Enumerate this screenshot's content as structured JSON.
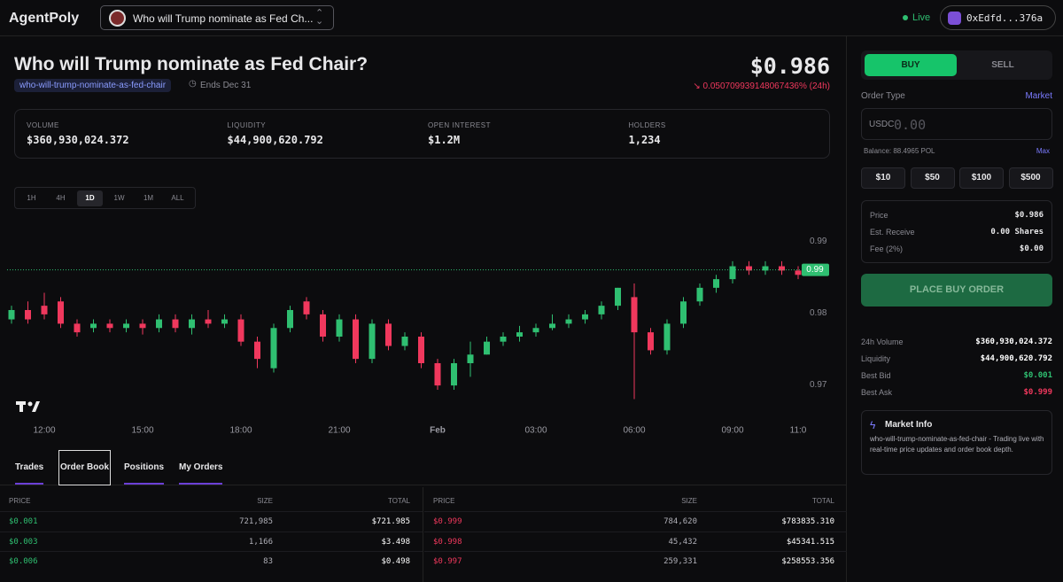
{
  "header": {
    "brand": "AgentPoly",
    "market_select": "Who will Trump nominate as Fed Ch...",
    "status": "Live",
    "wallet": "0xEdfd...376a"
  },
  "market": {
    "title": "Who will Trump nominate as Fed Chair?",
    "slug": "who-will-trump-nominate-as-fed-chair",
    "ends": "Ends Dec 31",
    "price": "$0.986",
    "change": "0.050709939148067436% (24h)"
  },
  "stats": [
    {
      "label": "VOLUME",
      "value": "$360,930,024.372"
    },
    {
      "label": "LIQUIDITY",
      "value": "$44,900,620.792"
    },
    {
      "label": "OPEN INTEREST",
      "value": "$1.2M"
    },
    {
      "label": "HOLDERS",
      "value": "1,234"
    }
  ],
  "timeframes": [
    "1H",
    "4H",
    "1D",
    "1W",
    "1M",
    "ALL"
  ],
  "active_timeframe": 2,
  "price_chart": {
    "type": "candlestick",
    "categories": [
      null,
      null,
      "12:00",
      null,
      null,
      null,
      null,
      null,
      "15:00",
      null,
      null,
      null,
      null,
      null,
      "18:00",
      null,
      null,
      null,
      null,
      null,
      "21:00",
      null,
      null,
      null,
      null,
      null,
      "Feb",
      null,
      null,
      null,
      null,
      null,
      "03:00",
      null,
      null,
      null,
      null,
      null,
      "06:00",
      null,
      null,
      null,
      null,
      null,
      "09:00",
      null,
      null,
      null,
      "11:0"
    ],
    "open": [
      0.9791,
      0.9804,
      0.981,
      0.9816,
      0.9785,
      0.9779,
      0.9785,
      0.9779,
      0.9785,
      0.9779,
      0.9791,
      0.9779,
      0.9791,
      0.9785,
      0.9791,
      0.976,
      0.9723,
      0.9779,
      0.9816,
      0.9798,
      0.9767,
      0.9791,
      0.9736,
      0.9785,
      0.9754,
      0.9767,
      0.973,
      0.9699,
      0.973,
      0.9742,
      0.976,
      0.9767,
      0.9773,
      0.9779,
      0.9785,
      0.9791,
      0.9798,
      0.981,
      0.9822,
      0.9773,
      0.9748,
      0.9785,
      0.9816,
      0.9835,
      0.9847,
      0.9865,
      0.9859,
      0.9865,
      0.9859
    ],
    "high": [
      0.981,
      0.9816,
      0.9828,
      0.9822,
      0.9791,
      0.9791,
      0.9791,
      0.9791,
      0.9791,
      0.9798,
      0.9798,
      0.9798,
      0.9804,
      0.9798,
      0.9798,
      0.9767,
      0.9785,
      0.981,
      0.9822,
      0.9804,
      0.9798,
      0.9798,
      0.9791,
      0.9791,
      0.9773,
      0.9773,
      0.9736,
      0.9736,
      0.976,
      0.9767,
      0.9773,
      0.9782,
      0.9785,
      0.9798,
      0.9798,
      0.9804,
      0.9816,
      0.9835,
      0.9841,
      0.9779,
      0.9791,
      0.9822,
      0.9841,
      0.9853,
      0.9872,
      0.9872,
      0.9872,
      0.9872,
      0.9865
    ],
    "low": [
      0.9785,
      0.9785,
      0.9791,
      0.9779,
      0.9767,
      0.9773,
      0.9773,
      0.9773,
      0.977,
      0.9773,
      0.9773,
      0.977,
      0.9779,
      0.9779,
      0.9754,
      0.9723,
      0.9717,
      0.9773,
      0.9791,
      0.976,
      0.976,
      0.973,
      0.973,
      0.9748,
      0.9748,
      0.9723,
      0.9693,
      0.9693,
      0.9711,
      0.9742,
      0.9754,
      0.976,
      0.9767,
      0.9776,
      0.9779,
      0.9785,
      0.9791,
      0.9804,
      0.968,
      0.9742,
      0.9742,
      0.9779,
      0.981,
      0.9828,
      0.9841,
      0.9853,
      0.9853,
      0.9853,
      0.9847
    ],
    "close": [
      0.9804,
      0.9791,
      0.9798,
      0.9785,
      0.9773,
      0.9785,
      0.9779,
      0.9785,
      0.9779,
      0.9791,
      0.9779,
      0.9791,
      0.9785,
      0.9791,
      0.976,
      0.9736,
      0.9779,
      0.9804,
      0.9798,
      0.9767,
      0.9791,
      0.9736,
      0.9785,
      0.9754,
      0.9767,
      0.973,
      0.9699,
      0.973,
      0.9742,
      0.976,
      0.9767,
      0.9773,
      0.9779,
      0.9785,
      0.9791,
      0.9798,
      0.981,
      0.9835,
      0.9773,
      0.9748,
      0.9785,
      0.9816,
      0.9835,
      0.9847,
      0.9865,
      0.9859,
      0.9865,
      0.9859,
      0.9853
    ],
    "ylim": [
      0.9656,
      0.9952
    ],
    "yticks": [
      0.97,
      0.98,
      0.99
    ],
    "last_price": {
      "value": 0.986,
      "label": "0.99"
    },
    "up_color": "#2fbf71",
    "down_color": "#f0385d"
  },
  "tabs": [
    "Trades",
    "Order Book",
    "Positions",
    "My Orders"
  ],
  "focused_tab": 1,
  "order_book": {
    "bids": {
      "columns": [
        "PRICE",
        "SIZE",
        "TOTAL"
      ],
      "rows": [
        [
          "$0.001",
          "721,985",
          "$721.985"
        ],
        [
          "$0.003",
          "1,166",
          "$3.498"
        ],
        [
          "$0.006",
          "83",
          "$0.498"
        ]
      ]
    },
    "asks": {
      "columns": [
        "PRICE",
        "SIZE",
        "TOTAL"
      ],
      "rows": [
        [
          "$0.999",
          "784,620",
          "$783835.310"
        ],
        [
          "$0.998",
          "45,432",
          "$45341.515"
        ],
        [
          "$0.997",
          "259,331",
          "$258553.356"
        ]
      ]
    }
  },
  "order_panel": {
    "buy": "BUY",
    "sell": "SELL",
    "order_type_label": "Order Type",
    "order_type": "Market",
    "currency": "USDC",
    "amount_placeholder": "0.00",
    "balance": "Balance: 88.4965 POL",
    "max": "Max",
    "quick_amounts": [
      "$10",
      "$50",
      "$100",
      "$500"
    ],
    "summary": [
      [
        "Price",
        "$0.986"
      ],
      [
        "Est. Receive",
        "0.00 Shares"
      ],
      [
        "Fee (2%)",
        "$0.00"
      ]
    ],
    "submit": "PLACE BUY ORDER",
    "market_stats": [
      [
        "24h Volume",
        "$360,930,024.372"
      ],
      [
        "Liquidity",
        "$44,900,620.792"
      ],
      [
        "Best Bid",
        "$0.001"
      ],
      [
        "Best Ask",
        "$0.999"
      ]
    ],
    "info_title": "Market Info",
    "info_text": "who-will-trump-nominate-as-fed-chair - Trading live with real-time price updates and order book depth."
  }
}
